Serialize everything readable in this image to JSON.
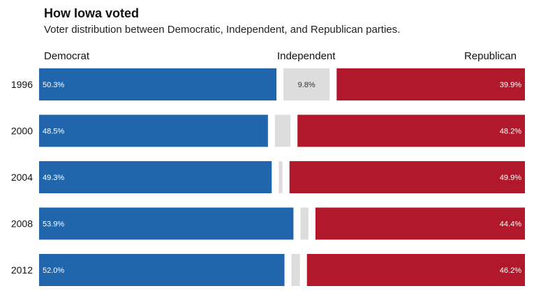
{
  "title": "How Iowa voted",
  "subtitle": "Voter distribution between Democratic, Independent, and Republican parties.",
  "colors": {
    "democrat": "#2166ac",
    "independent": "#dddddd",
    "republican": "#b2182b"
  },
  "chart_data": {
    "type": "bar",
    "stacked": true,
    "orientation": "horizontal",
    "categories": [
      "1996",
      "2000",
      "2004",
      "2008",
      "2012"
    ],
    "series": [
      {
        "name": "Democrat",
        "values": [
          50.3,
          48.5,
          49.3,
          53.9,
          52.0
        ],
        "labels": [
          "50.3%",
          "48.5%",
          "49.3%",
          "53.9%",
          "52.0%"
        ]
      },
      {
        "name": "Independent",
        "values": [
          9.8,
          3.3,
          0.8,
          1.7,
          1.8
        ],
        "labels": [
          "9.8%",
          "",
          "",
          "",
          ""
        ]
      },
      {
        "name": "Republican",
        "values": [
          39.9,
          48.2,
          49.9,
          44.4,
          46.2
        ],
        "labels": [
          "39.9%",
          "48.2%",
          "49.9%",
          "44.4%",
          "46.2%"
        ]
      }
    ],
    "xlim": [
      0,
      100
    ],
    "grid": false,
    "legend": "top"
  }
}
